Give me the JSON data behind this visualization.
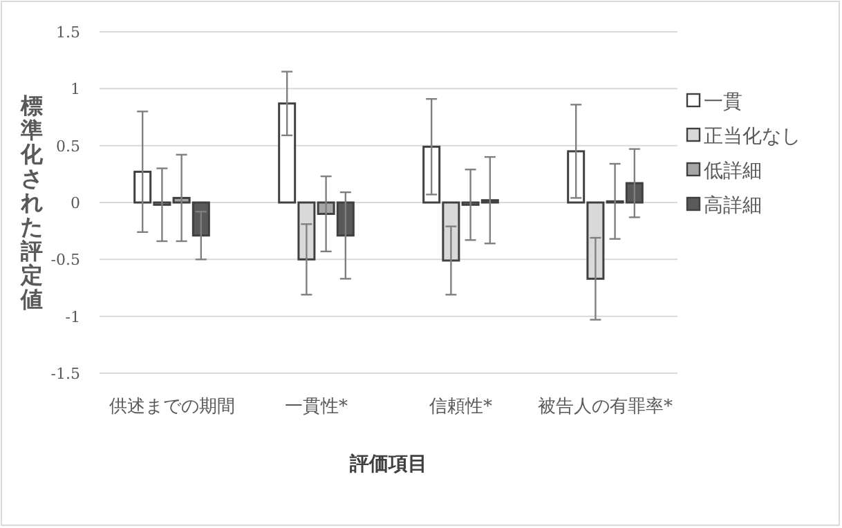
{
  "chart_data": {
    "type": "bar",
    "xlabel": "評価項目",
    "ylabel": "標準化された評定値",
    "categories": [
      "供述までの期間",
      "一貫性*",
      "信頼性*",
      "被告人の有罪率*"
    ],
    "series": [
      {
        "name": "一貫",
        "color": "#ffffff",
        "values": [
          0.27,
          0.87,
          0.49,
          0.45
        ],
        "errors": [
          0.53,
          0.28,
          0.42,
          0.41
        ]
      },
      {
        "name": "正当化なし",
        "color": "#d9d9d9",
        "values": [
          -0.02,
          -0.5,
          -0.51,
          -0.67
        ],
        "errors": [
          0.32,
          0.31,
          0.3,
          0.36
        ]
      },
      {
        "name": "低詳細",
        "color": "#a6a6a6",
        "values": [
          0.04,
          -0.1,
          -0.02,
          0.01
        ],
        "errors": [
          0.38,
          0.33,
          0.31,
          0.33
        ]
      },
      {
        "name": "高詳細",
        "color": "#595959",
        "values": [
          -0.29,
          -0.29,
          0.02,
          0.17
        ],
        "errors": [
          0.21,
          0.38,
          0.38,
          0.3
        ]
      }
    ],
    "ylim": [
      -1.5,
      1.5
    ],
    "yticks": [
      -1.5,
      -1,
      -0.5,
      0,
      0.5,
      1,
      1.5
    ],
    "grid": "y",
    "legend": "right"
  }
}
